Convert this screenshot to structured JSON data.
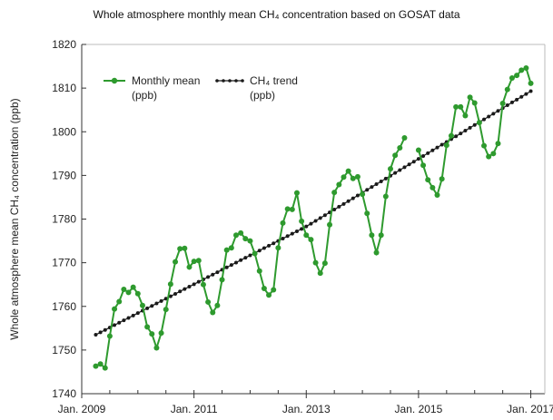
{
  "chart_data": {
    "type": "line",
    "title": "Whole atmosphere monthly mean CH₄ concentration based on GOSAT data",
    "xlabel": "",
    "ylabel": "Whole atmosphere mean CH₄ concentration (ppb)",
    "ylim": [
      1740,
      1820
    ],
    "xlim": [
      "2009-01",
      "2017-04"
    ],
    "y_ticks": [
      "1740",
      "1750",
      "1760",
      "1770",
      "1780",
      "1790",
      "1800",
      "1810",
      "1820"
    ],
    "x_ticks": [
      {
        "label": "Jan. 2009",
        "x": "2009-01"
      },
      {
        "label": "Jan. 2011",
        "x": "2011-01"
      },
      {
        "label": "Jan. 2013",
        "x": "2013-01"
      },
      {
        "label": "Jan. 2015",
        "x": "2015-01"
      },
      {
        "label": "Jan. 2017",
        "x": "2017-01"
      }
    ],
    "grid": false,
    "legend_position": "top-left",
    "series": [
      {
        "name": "Monthly mean (ppb)",
        "legend_lines": [
          "Monthly mean",
          "(ppb)"
        ],
        "color": "#2e9a2e",
        "marker": "circle",
        "x": [
          "2009-04",
          "2009-05",
          "2009-06",
          "2009-07",
          "2009-08",
          "2009-09",
          "2009-10",
          "2009-11",
          "2009-12",
          "2010-01",
          "2010-02",
          "2010-03",
          "2010-04",
          "2010-05",
          "2010-06",
          "2010-07",
          "2010-08",
          "2010-09",
          "2010-10",
          "2010-11",
          "2010-12",
          "2011-01",
          "2011-02",
          "2011-03",
          "2011-04",
          "2011-05",
          "2011-06",
          "2011-07",
          "2011-08",
          "2011-09",
          "2011-10",
          "2011-11",
          "2011-12",
          "2012-01",
          "2012-02",
          "2012-03",
          "2012-04",
          "2012-05",
          "2012-06",
          "2012-07",
          "2012-08",
          "2012-09",
          "2012-10",
          "2012-11",
          "2012-12",
          "2013-01",
          "2013-02",
          "2013-03",
          "2013-04",
          "2013-05",
          "2013-06",
          "2013-07",
          "2013-08",
          "2013-09",
          "2013-10",
          "2013-11",
          "2013-12",
          "2014-01",
          "2014-02",
          "2014-03",
          "2014-04",
          "2014-05",
          "2014-06",
          "2014-07",
          "2014-08",
          "2014-09",
          "2014-10",
          "2014-11",
          "2014-12",
          "2015-01",
          "2015-02",
          "2015-03",
          "2015-04",
          "2015-05",
          "2015-06",
          "2015-07",
          "2015-08",
          "2015-09",
          "2015-10",
          "2015-11",
          "2015-12",
          "2016-01",
          "2016-02",
          "2016-03",
          "2016-04",
          "2016-05",
          "2016-06",
          "2016-07",
          "2016-08",
          "2016-09",
          "2016-10",
          "2016-11",
          "2016-12",
          "2017-01",
          "2017-02"
        ],
        "values": [
          1746.3,
          1746.8,
          1745.9,
          1753.2,
          1759.4,
          1761.1,
          1763.9,
          1763.2,
          1764.4,
          1762.9,
          1760.2,
          1755.3,
          1753.7,
          1750.5,
          1753.9,
          1759.3,
          1765.1,
          1770.2,
          1773.2,
          1773.3,
          1769.0,
          1770.3,
          1770.5,
          1765.0,
          1761.0,
          1758.6,
          1760.2,
          1766.1,
          1772.9,
          1773.4,
          1776.3,
          1776.8,
          1775.5,
          1775.0,
          1772.1,
          1768.1,
          1764.1,
          1762.6,
          1763.8,
          1773.4,
          1779.1,
          1782.3,
          1782.2,
          1786.0,
          1779.5,
          1776.3,
          1775.3,
          1770.0,
          1767.6,
          1769.9,
          1778.7,
          1786.1,
          1787.9,
          1789.6,
          1791.0,
          1789.3,
          1789.7,
          1785.7,
          1781.3,
          1776.3,
          1772.3,
          1776.3,
          1785.2,
          1791.5,
          1794.6,
          1796.3,
          1798.6,
          null,
          null,
          1795.8,
          1792.3,
          1789.0,
          1787.2,
          1785.5,
          1789.2,
          1796.9,
          1799.1,
          1805.7,
          1805.7,
          1803.7,
          1807.9,
          1806.6,
          1802.1,
          1796.8,
          1794.3,
          1795.0,
          1797.3,
          1806.5,
          1809.7,
          1812.3,
          1812.9,
          1814.1,
          1814.6,
          1811.1,
          null
        ]
      },
      {
        "name": "CH₄ trend (ppb)",
        "legend_lines": [
          "CH₄ trend",
          "(ppb)"
        ],
        "color": "#1a1a1a",
        "marker": "dot",
        "x_start": "2009-04",
        "x_end": "2017-01",
        "y_start": 1753.5,
        "y_end": 1809.3,
        "y_mid_2013_01": 1778.3
      }
    ]
  }
}
